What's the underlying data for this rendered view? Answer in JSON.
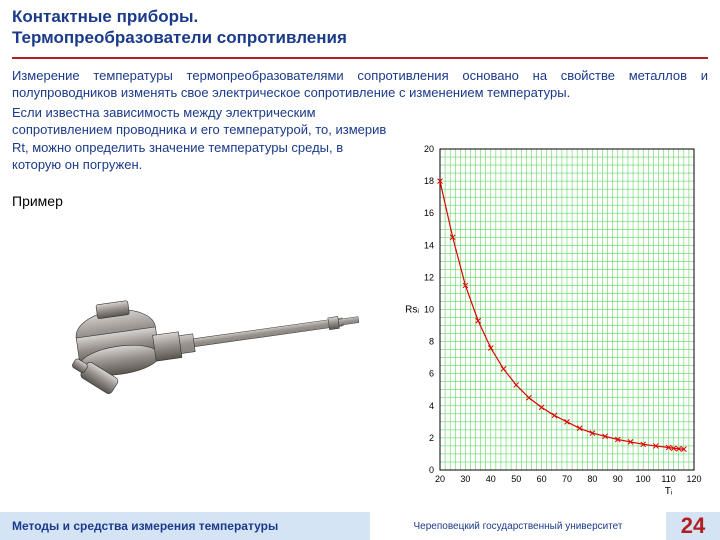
{
  "title": {
    "line1": "Контактные приборы.",
    "line2": "Термопреобразователи сопротивления",
    "underline_color": "#b02020",
    "text_color": "#1a3a8a"
  },
  "paragraph1": "Измерение температуры термопреобразователями сопротивления основано на свойстве металлов и полупроводников изменять свое электрическое сопротивление с изменением температуры.",
  "paragraph2": "Если известна зависимость между электрическим сопротивлением проводника и его температурой, то, измерив Rt, можно определить значение температуры среды, в которую он погружен.",
  "example_label": "Пример",
  "chart": {
    "type": "line",
    "ylabel": "Rsᵢ",
    "xlabel": "Tᵢ",
    "xlim": [
      20,
      120
    ],
    "ylim": [
      0,
      20
    ],
    "xtick_step": 10,
    "ytick_step": 2,
    "background_color": "#ffffff",
    "grid_color": "#40d040",
    "grid_width": 0.5,
    "border_color": "#000000",
    "label_fontsize": 9,
    "axis_label_fontsize": 10,
    "line_color": "#e00000",
    "line_width": 1.2,
    "marker": "x",
    "marker_color": "#e00000",
    "marker_size": 5,
    "data_T": [
      20,
      25,
      30,
      35,
      40,
      45,
      50,
      55,
      60,
      65,
      70,
      75,
      80,
      85,
      90,
      95,
      100,
      105,
      110,
      112,
      114,
      116
    ],
    "data_Rs": [
      18.0,
      14.5,
      11.5,
      9.3,
      7.6,
      6.3,
      5.3,
      4.5,
      3.9,
      3.4,
      3.0,
      2.6,
      2.3,
      2.1,
      1.9,
      1.75,
      1.6,
      1.5,
      1.4,
      1.35,
      1.32,
      1.3
    ]
  },
  "device": {
    "body_color": "#9a9490",
    "body_light": "#d8d4d0",
    "body_dark": "#5a544e",
    "probe_color": "#cfcac4",
    "probe_dark": "#8a847e"
  },
  "footer": {
    "left": "Методы и средства измерения температуры",
    "mid": "Череповецкий государственный университет",
    "page": "24",
    "left_bg": "#d5e4f5",
    "page_color": "#b02020"
  }
}
